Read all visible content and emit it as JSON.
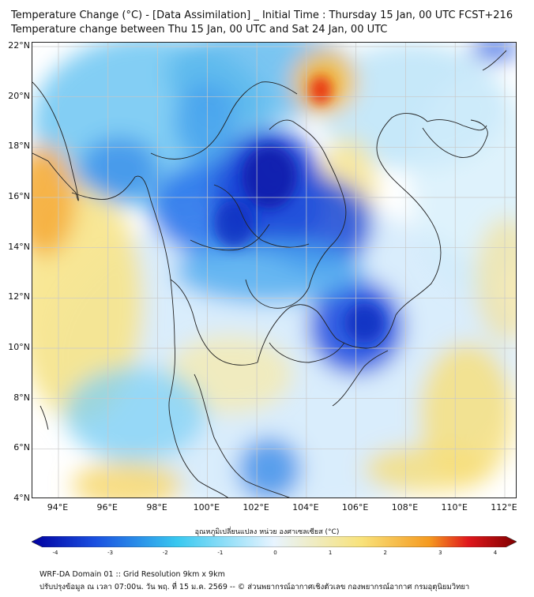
{
  "header": {
    "title_line1": "Temperature Change (°C) - [Data Assimilation] _ Initial Time : Thursday 15 Jan, 00 UTC FCST+216",
    "title_line2": "Temperature change between Thu 15 Jan, 00 UTC and Sat 24 Jan, 00 UTC"
  },
  "map": {
    "lat_labels": [
      "22°N",
      "20°N",
      "18°N",
      "16°N",
      "14°N",
      "12°N",
      "10°N",
      "8°N",
      "6°N",
      "4°N"
    ],
    "lon_labels": [
      "94°E",
      "96°E",
      "98°E",
      "100°E",
      "102°E",
      "104°E",
      "106°E",
      "108°E",
      "110°E",
      "112°E"
    ]
  },
  "colorbar": {
    "title": "อุณหภูมิเปลี่ยนแปลง หน่วย องศาเซลเซียส (°C)",
    "ticks": [
      "-4",
      "-3",
      "-2",
      "-1",
      "0",
      "1",
      "2",
      "3",
      "4"
    ],
    "colors": {
      "deep_blue": "#0000a0",
      "blue": "#1a4fe0",
      "cyan": "#38c8f0",
      "light": "#e8f4ff",
      "yellow": "#f8e27a",
      "orange": "#f59a20",
      "red": "#e0181c",
      "dark_red": "#800000"
    }
  },
  "footer": {
    "line1": "WRF-DA Domain 01 :: Grid Resolution 9km x 9km",
    "line2": "ปรับปรุงข้อมูล ณ เวลา 07:00น. วัน พฤ. ที่ 15 ม.ค. 2569 -- © ส่วนพยากรณ์อากาศเชิงตัวเลข กองพยากรณ์อากาศ กรมอุตุนิยมวิทยา"
  }
}
